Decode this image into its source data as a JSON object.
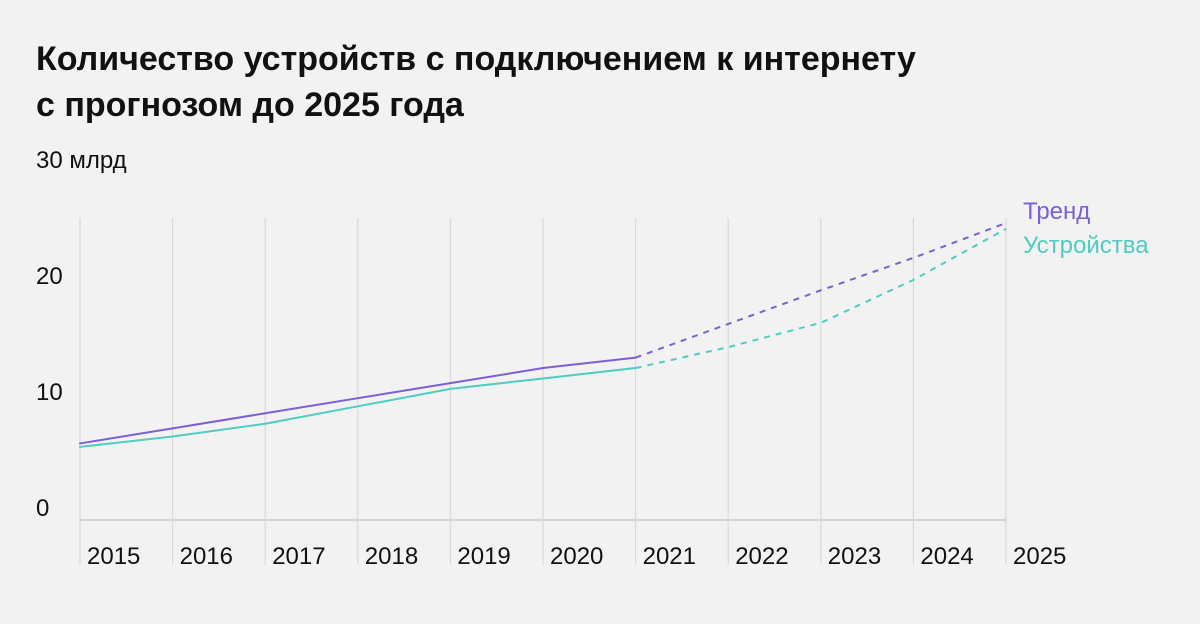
{
  "title": {
    "line1": "Количество устройств с подключением к интернету",
    "line2": "с прогнозом до 2025 года"
  },
  "colors": {
    "trend": "#7b5fd6",
    "devices": "#4ecdc0",
    "grid": "#d9d9d9",
    "axis": "#c8c8c8",
    "text": "#111111",
    "background": "#f2f2f2"
  },
  "chart_data": {
    "type": "line",
    "title": "Количество устройств с подключением к интернету с прогнозом до 2025 года",
    "xlabel": "",
    "ylabel": "",
    "x": [
      "2015",
      "2016",
      "2017",
      "2018",
      "2019",
      "2020",
      "2021",
      "2022",
      "2023",
      "2024",
      "2025"
    ],
    "ylim": [
      0,
      30
    ],
    "y_ticks": [
      {
        "value": 0,
        "label": "0"
      },
      {
        "value": 10,
        "label": "10"
      },
      {
        "value": 20,
        "label": "20"
      },
      {
        "value": 30,
        "label": "30 млрд"
      }
    ],
    "grid": "vertical",
    "forecast_from": "2021",
    "legend_position": "right-end",
    "series": [
      {
        "name": "Тренд",
        "color": "#7b5fd6",
        "values": [
          6.6,
          7.9,
          9.2,
          10.5,
          11.8,
          13.1,
          14.0,
          16.9,
          19.8,
          22.6,
          25.6
        ]
      },
      {
        "name": "Устройства",
        "color": "#4ecdc0",
        "values": [
          6.3,
          7.2,
          8.3,
          9.8,
          11.3,
          12.2,
          13.1,
          14.9,
          17.0,
          20.7,
          25.1
        ]
      }
    ]
  }
}
